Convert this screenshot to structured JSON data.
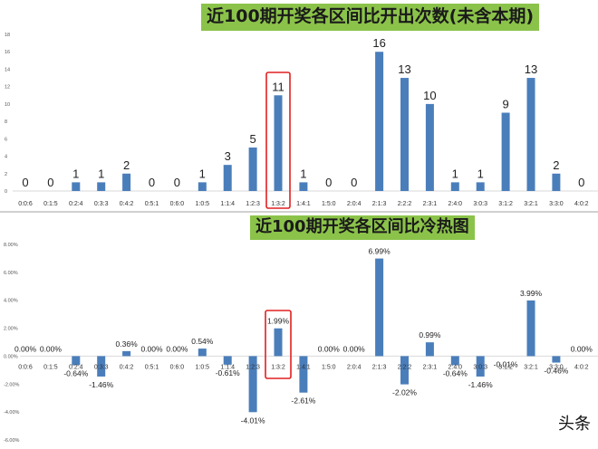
{
  "watermark": "头条",
  "chart_data": [
    {
      "type": "bar",
      "title": "近100期开奖各区间比开出次数(未含本期)",
      "categories": [
        "0:0:6",
        "0:1:5",
        "0:2:4",
        "0:3:3",
        "0:4:2",
        "0:5:1",
        "0:6:0",
        "1:0:5",
        "1:1:4",
        "1:2:3",
        "1:3:2",
        "1:4:1",
        "1:5:0",
        "2:0:4",
        "2:1:3",
        "2:2:2",
        "2:3:1",
        "2:4:0",
        "3:0:3",
        "3:1:2",
        "3:2:1",
        "3:3:0",
        "4:0:2"
      ],
      "values": [
        0,
        0,
        1,
        1,
        2,
        0,
        0,
        1,
        3,
        5,
        11,
        1,
        0,
        0,
        16,
        13,
        10,
        1,
        1,
        9,
        13,
        2,
        0
      ],
      "ylim": [
        0,
        18
      ],
      "yticks": [
        "0",
        "2",
        "4",
        "6",
        "8",
        "10",
        "12",
        "14",
        "16",
        "18"
      ],
      "highlight_category": "1:3:2",
      "bar_color": "#4a7ebb",
      "highlight_color": "#e02020",
      "grid": false
    },
    {
      "type": "bar",
      "title": "近100期开奖各区间比冷热图",
      "categories": [
        "0:0:6",
        "0:1:5",
        "0:2:4",
        "0:3:3",
        "0:4:2",
        "0:5:1",
        "0:6:0",
        "1:0:5",
        "1:1:4",
        "1:2:3",
        "1:3:2",
        "1:4:1",
        "1:5:0",
        "2:0:4",
        "2:1:3",
        "2:2:2",
        "2:3:1",
        "2:4:0",
        "3:0:3",
        "3:1:2",
        "3:2:1",
        "3:3:0",
        "4:0:2"
      ],
      "values": [
        0.0,
        0.0,
        -0.64,
        -1.46,
        0.36,
        0.0,
        0.0,
        0.54,
        -0.61,
        -4.01,
        1.99,
        -2.61,
        0.0,
        0.0,
        6.99,
        -2.02,
        0.99,
        -0.64,
        -1.46,
        -0.01,
        3.99,
        -0.46,
        0.0
      ],
      "value_labels": [
        "0.00%",
        "0.00%",
        "-0.64%",
        "-1.46%",
        "0.36%",
        "0.00%",
        "0.00%",
        "0.54%",
        "-0.61%",
        "-4.01%",
        "1.99%",
        "-2.61%",
        "0.00%",
        "0.00%",
        "6.99%",
        "-2.02%",
        "0.99%",
        "-0.64%",
        "-1.46%",
        "-0.01%",
        "3.99%",
        "-0.46%",
        "0.00%"
      ],
      "ylim": [
        -6,
        8
      ],
      "yticks": [
        "8.00%",
        "6.00%",
        "4.00%",
        "2.00%",
        "0.00%",
        "-2.00%",
        "-4.00%",
        "-6.00%"
      ],
      "highlight_category": "1:3:2",
      "bar_color": "#4a7ebb",
      "highlight_color": "#e02020",
      "grid": false
    }
  ]
}
